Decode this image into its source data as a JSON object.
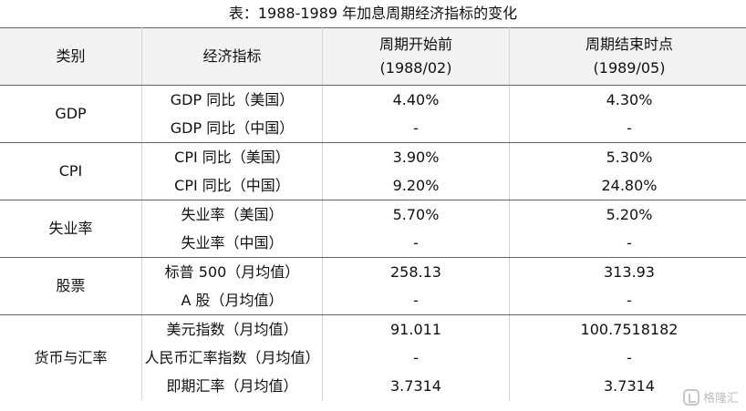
{
  "title": "表：1988-1989 年加息周期经济指标的变化",
  "headers": {
    "category": "类别",
    "indicator": "经济指标",
    "start": "周期开始前",
    "start_date": "(1988/02)",
    "end": "周期结束时点",
    "end_date": "(1989/05)"
  },
  "groups": [
    {
      "category": "GDP",
      "rows": [
        {
          "indicator": "GDP 同比（美国）",
          "start": "4.40%",
          "end": "4.30%"
        },
        {
          "indicator": "GDP 同比（中国）",
          "start": "-",
          "end": "-"
        }
      ]
    },
    {
      "category": "CPI",
      "rows": [
        {
          "indicator": "CPI 同比（美国）",
          "start": "3.90%",
          "end": "5.30%"
        },
        {
          "indicator": "CPI 同比（中国）",
          "start": "9.20%",
          "end": "24.80%"
        }
      ]
    },
    {
      "category": "失业率",
      "rows": [
        {
          "indicator": "失业率（美国）",
          "start": "5.70%",
          "end": "5.20%"
        },
        {
          "indicator": "失业率（中国）",
          "start": "-",
          "end": "-"
        }
      ]
    },
    {
      "category": "股票",
      "rows": [
        {
          "indicator": "标普 500（月均值）",
          "start": "258.13",
          "end": "313.93"
        },
        {
          "indicator": "A 股（月均值）",
          "start": "-",
          "end": "-"
        }
      ]
    },
    {
      "category": "货币与汇率",
      "rows": [
        {
          "indicator": "美元指数（月均值）",
          "start": "91.011",
          "end": "100.7518182"
        },
        {
          "indicator": "人民币汇率指数（月均值）",
          "start": "-",
          "end": "-"
        },
        {
          "indicator": "即期汇率（月均值）",
          "start": "3.7314",
          "end": "3.7314"
        }
      ]
    }
  ],
  "watermark": {
    "text": "格隆汇",
    "icon": "gelonghui-logo-icon"
  }
}
